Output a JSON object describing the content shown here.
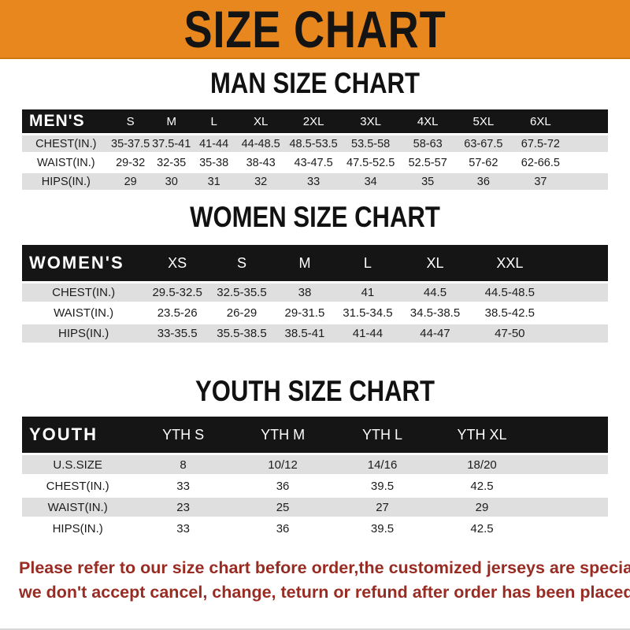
{
  "banner": {
    "title": "SIZE CHART"
  },
  "colors": {
    "banner_bg": "#E8871E",
    "header_bar": "#151515",
    "row_alt": "#DFDFDF",
    "footer_text": "#982B22"
  },
  "sections": [
    {
      "id": "men",
      "title": "MAN SIZE CHART",
      "header_label": "MEN'S",
      "columns": [
        "S",
        "M",
        "L",
        "XL",
        "2XL",
        "3XL",
        "4XL",
        "5XL",
        "6XL"
      ],
      "rows": [
        {
          "label": "CHEST(IN.)",
          "values": [
            "35-37.5",
            "37.5-41",
            "41-44",
            "44-48.5",
            "48.5-53.5",
            "53.5-58",
            "58-63",
            "63-67.5",
            "67.5-72"
          ]
        },
        {
          "label": "WAIST(IN.)",
          "values": [
            "29-32",
            "32-35",
            "35-38",
            "38-43",
            "43-47.5",
            "47.5-52.5",
            "52.5-57",
            "57-62",
            "62-66.5"
          ]
        },
        {
          "label": "HIPS(IN.)",
          "values": [
            "29",
            "30",
            "31",
            "32",
            "33",
            "34",
            "35",
            "36",
            "37"
          ]
        }
      ]
    },
    {
      "id": "women",
      "title": "WOMEN SIZE CHART",
      "header_label": "WOMEN'S",
      "columns": [
        "XS",
        "S",
        "M",
        "L",
        "XL",
        "XXL"
      ],
      "rows": [
        {
          "label": "CHEST(IN.)",
          "values": [
            "29.5-32.5",
            "32.5-35.5",
            "38",
            "41",
            "44.5",
            "44.5-48.5"
          ]
        },
        {
          "label": "WAIST(IN.)",
          "values": [
            "23.5-26",
            "26-29",
            "29-31.5",
            "31.5-34.5",
            "34.5-38.5",
            "38.5-42.5"
          ]
        },
        {
          "label": "HIPS(IN.)",
          "values": [
            "33-35.5",
            "35.5-38.5",
            "38.5-41",
            "41-44",
            "44-47",
            "47-50"
          ]
        }
      ]
    },
    {
      "id": "youth",
      "title": "YOUTH SIZE CHART",
      "header_label": "YOUTH",
      "columns": [
        "YTH S",
        "YTH M",
        "YTH L",
        "YTH XL"
      ],
      "rows": [
        {
          "label": "U.S.SIZE",
          "values": [
            "8",
            "10/12",
            "14/16",
            "18/20"
          ]
        },
        {
          "label": "CHEST(IN.)",
          "values": [
            "33",
            "36",
            "39.5",
            "42.5"
          ]
        },
        {
          "label": "WAIST(IN.)",
          "values": [
            "23",
            "25",
            "27",
            "29"
          ]
        },
        {
          "label": "HIPS(IN.)",
          "values": [
            "33",
            "36",
            "39.5",
            "42.5"
          ]
        }
      ]
    }
  ],
  "footer": {
    "lines": [
      "Please refer to our size chart before order,the customized jerseys are special products,",
      "we don't accept cancel, change, teturn or refund after order has been placed!"
    ]
  }
}
